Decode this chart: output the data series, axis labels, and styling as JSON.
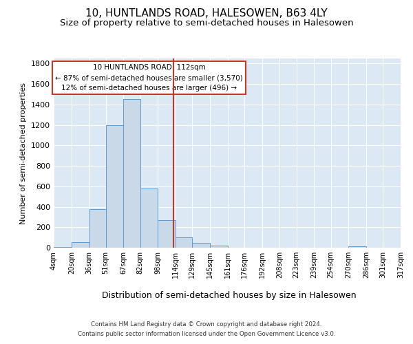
{
  "title_line1": "10, HUNTLANDS ROAD, HALESOWEN, B63 4LY",
  "title_line2": "Size of property relative to semi-detached houses in Halesowen",
  "xlabel": "Distribution of semi-detached houses by size in Halesowen",
  "ylabel": "Number of semi-detached properties",
  "bin_labels": [
    "4sqm",
    "20sqm",
    "36sqm",
    "51sqm",
    "67sqm",
    "82sqm",
    "98sqm",
    "114sqm",
    "129sqm",
    "145sqm",
    "161sqm",
    "176sqm",
    "192sqm",
    "208sqm",
    "223sqm",
    "239sqm",
    "254sqm",
    "270sqm",
    "286sqm",
    "301sqm",
    "317sqm"
  ],
  "bin_edges": [
    4,
    20,
    36,
    51,
    67,
    82,
    98,
    114,
    129,
    145,
    161,
    176,
    192,
    208,
    223,
    239,
    254,
    270,
    286,
    301,
    317
  ],
  "bar_heights": [
    10,
    55,
    375,
    1200,
    1450,
    580,
    270,
    100,
    45,
    20,
    0,
    0,
    0,
    0,
    0,
    0,
    0,
    15,
    0,
    0
  ],
  "bar_color": "#c9d9e8",
  "bar_edge_color": "#5b9bd5",
  "property_size": 112,
  "vline_color": "#c0392b",
  "annotation_title": "10 HUNTLANDS ROAD: 112sqm",
  "annotation_line1": "← 87% of semi-detached houses are smaller (3,570)",
  "annotation_line2": "12% of semi-detached houses are larger (496) →",
  "annotation_box_color": "#c0392b",
  "ylim": [
    0,
    1850
  ],
  "yticks": [
    0,
    200,
    400,
    600,
    800,
    1000,
    1200,
    1400,
    1600,
    1800
  ],
  "background_color": "#dce9f5",
  "footer_line1": "Contains HM Land Registry data © Crown copyright and database right 2024.",
  "footer_line2": "Contains public sector information licensed under the Open Government Licence v3.0.",
  "title_fontsize": 11,
  "subtitle_fontsize": 9.5
}
